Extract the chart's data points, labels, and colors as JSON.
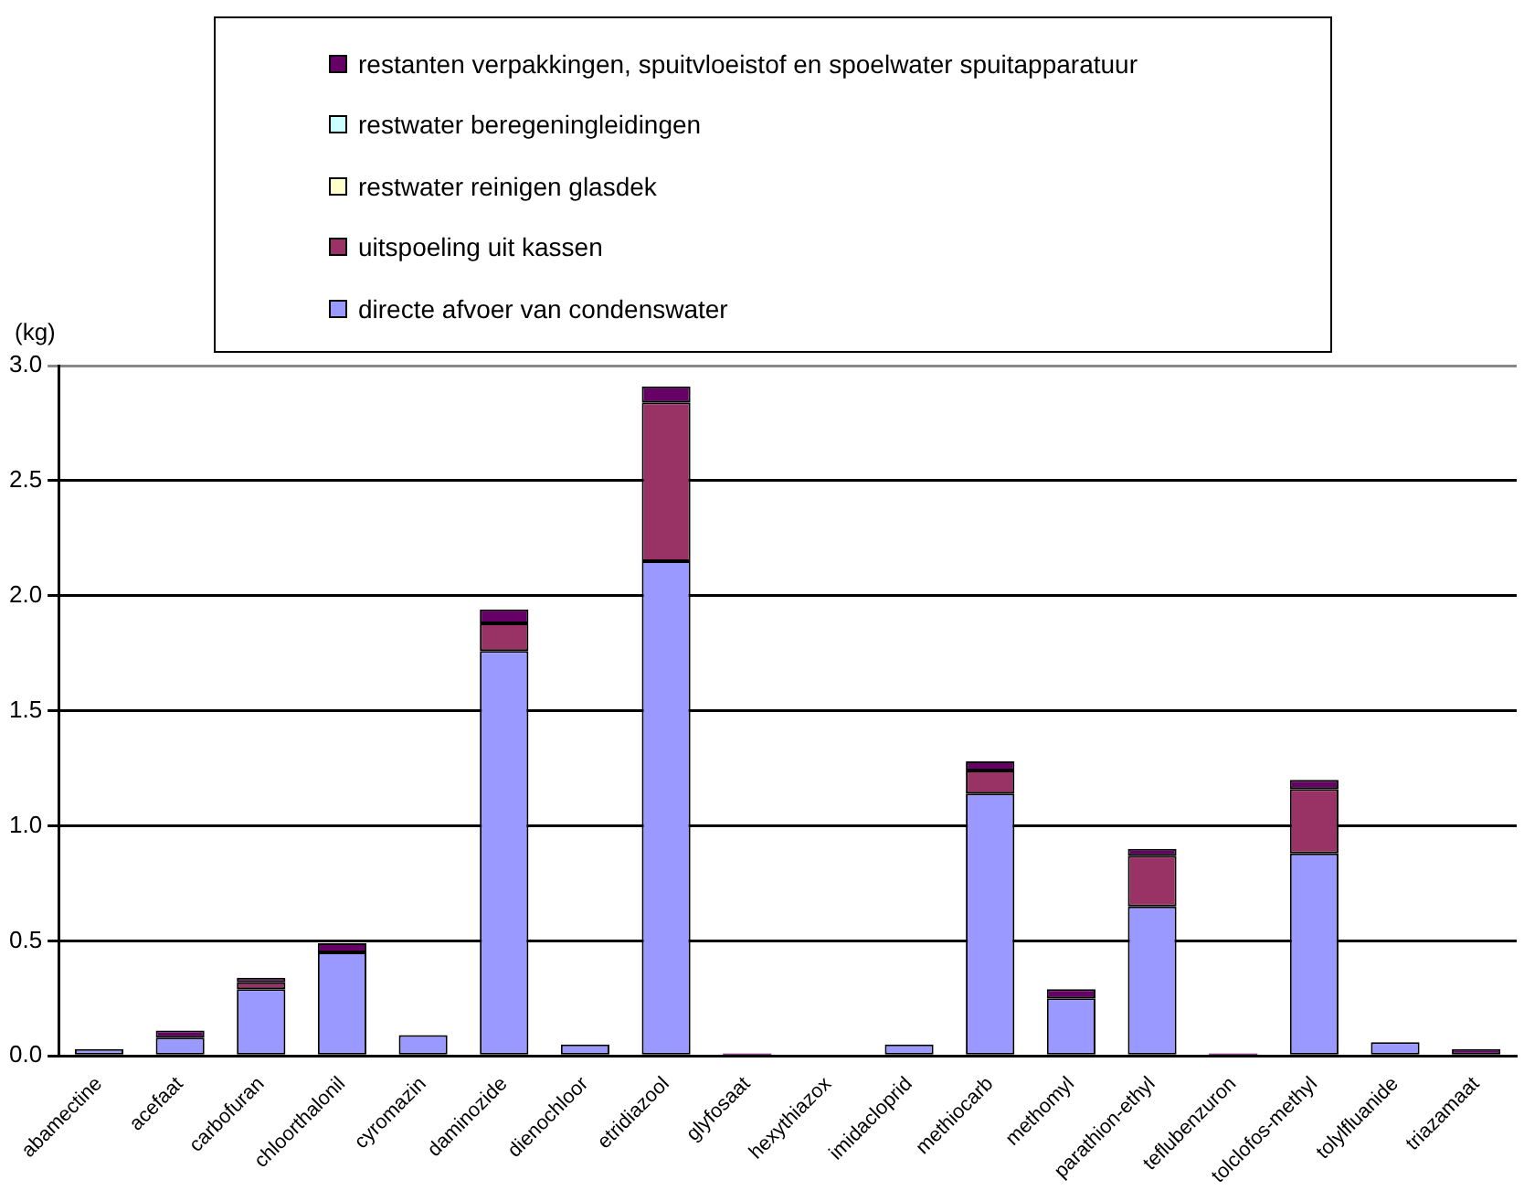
{
  "chart_data": {
    "type": "bar",
    "stacked": true,
    "ylabel": "(kg)",
    "categories": [
      "abamectine",
      "acefaat",
      "carbofuran",
      "chloorthalonil",
      "cyromazin",
      "daminozide",
      "dienochloor",
      "etridiazool",
      "glyfosaat",
      "hexythiazox",
      "imidacloprid",
      "methiocarb",
      "methomyl",
      "parathion-ethyl",
      "teflubenzuron",
      "tolclofos-methyl",
      "tolylfluanide",
      "triazamaat"
    ],
    "series": [
      {
        "name": "directe afvoer van condenswater",
        "color": "#9999ff",
        "values": [
          0.03,
          0.08,
          0.29,
          0.45,
          0.09,
          1.76,
          0.05,
          2.15,
          0,
          0,
          0.05,
          1.14,
          0.25,
          0.65,
          0,
          0.88,
          0.06,
          0
        ]
      },
      {
        "name": "uitspoeling uit kassen",
        "color": "#993366",
        "values": [
          0,
          0,
          0.03,
          0,
          0,
          0.12,
          0,
          0.69,
          0,
          0,
          0,
          0.1,
          0,
          0.22,
          0,
          0.28,
          0,
          0
        ]
      },
      {
        "name": "restwater reinigen glasdek",
        "color": "#ffffcc",
        "values": [
          0,
          0,
          0,
          0,
          0,
          0,
          0,
          0,
          0,
          0,
          0,
          0,
          0,
          0,
          0,
          0,
          0,
          0
        ]
      },
      {
        "name": "restwater beregeningleidingen",
        "color": "#ccffff",
        "values": [
          0,
          0,
          0,
          0,
          0,
          0,
          0,
          0,
          0,
          0,
          0,
          0,
          0,
          0,
          0,
          0,
          0,
          0
        ]
      },
      {
        "name": "restanten verpakkingen, spuitvloeistof en spoelwater spuitapparatuur",
        "color": "#660066",
        "values": [
          0,
          0.03,
          0.02,
          0.04,
          0,
          0.06,
          0,
          0.07,
          0.01,
          0,
          0,
          0.04,
          0.04,
          0.03,
          0.01,
          0.04,
          0,
          0.03
        ]
      }
    ],
    "ylim": [
      0,
      3
    ],
    "yticks": [
      {
        "value": 0,
        "label": "0.0"
      },
      {
        "value": 0.5,
        "label": "0.5"
      },
      {
        "value": 1,
        "label": "1.0"
      },
      {
        "value": 1.5,
        "label": "1.5"
      },
      {
        "value": 2,
        "label": "2.0"
      },
      {
        "value": 2.5,
        "label": "2.5"
      },
      {
        "value": 3,
        "label": "3.0"
      }
    ],
    "grid": "y",
    "legend": "top"
  }
}
